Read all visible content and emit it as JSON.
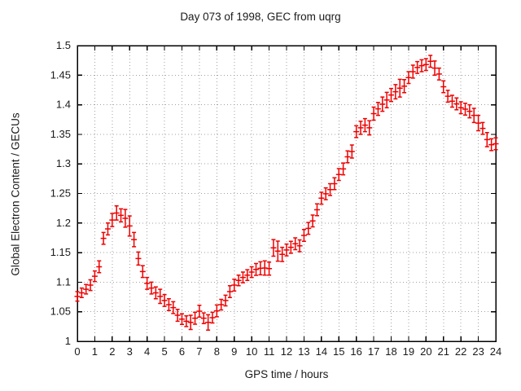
{
  "chart_data": {
    "type": "scatter",
    "style": "errorbars",
    "title": "Day 073 of 1998, GEC from uqrg",
    "xlabel": "GPS time / hours",
    "ylabel": "Global Electron Content / GECUs",
    "xlim": [
      0,
      24
    ],
    "ylim": [
      1.0,
      1.5
    ],
    "xticks": [
      0,
      1,
      2,
      3,
      4,
      5,
      6,
      7,
      8,
      9,
      10,
      11,
      12,
      13,
      14,
      15,
      16,
      17,
      18,
      19,
      20,
      21,
      22,
      23,
      24
    ],
    "yticks": [
      1.0,
      1.05,
      1.1,
      1.15,
      1.2,
      1.25,
      1.3,
      1.35,
      1.4,
      1.45,
      1.5
    ],
    "ytick_labels": [
      "1",
      "1.05",
      "1.1",
      "1.15",
      "1.2",
      "1.25",
      "1.3",
      "1.35",
      "1.4",
      "1.45",
      "1.5"
    ],
    "grid": true,
    "legend_position": "none",
    "series": [
      {
        "name": "GEC",
        "color": "#ee0000",
        "marker": "errorbar-with-dash",
        "x": [
          0,
          0.25,
          0.5,
          0.75,
          1,
          1.25,
          1.5,
          1.75,
          2,
          2.25,
          2.5,
          2.75,
          3,
          3.25,
          3.5,
          3.75,
          4,
          4.25,
          4.5,
          4.75,
          5,
          5.25,
          5.5,
          5.75,
          6,
          6.25,
          6.5,
          6.75,
          7,
          7.25,
          7.5,
          7.75,
          8,
          8.25,
          8.5,
          8.75,
          9,
          9.25,
          9.5,
          9.75,
          10,
          10.25,
          10.5,
          10.75,
          11,
          11.25,
          11.5,
          11.75,
          12,
          12.25,
          12.5,
          12.75,
          13,
          13.25,
          13.5,
          13.75,
          14,
          14.25,
          14.5,
          14.75,
          15,
          15.25,
          15.5,
          15.75,
          16,
          16.25,
          16.5,
          16.75,
          17,
          17.25,
          17.5,
          17.75,
          18,
          18.25,
          18.5,
          18.75,
          19,
          19.25,
          19.5,
          19.75,
          20,
          20.25,
          20.5,
          20.75,
          21,
          21.25,
          21.5,
          21.75,
          22,
          22.25,
          22.5,
          22.75,
          23,
          23.25,
          23.5,
          23.75,
          24
        ],
        "y": [
          1.076,
          1.082,
          1.088,
          1.095,
          1.11,
          1.126,
          1.174,
          1.19,
          1.205,
          1.217,
          1.213,
          1.208,
          1.195,
          1.172,
          1.14,
          1.118,
          1.098,
          1.09,
          1.082,
          1.076,
          1.069,
          1.062,
          1.057,
          1.044,
          1.0375,
          1.034,
          1.032,
          1.039,
          1.051,
          1.039,
          1.032,
          1.04,
          1.0515,
          1.062,
          1.069,
          1.084,
          1.095,
          1.103,
          1.108,
          1.112,
          1.117,
          1.1215,
          1.1235,
          1.124,
          1.123,
          1.158,
          1.1525,
          1.147,
          1.1545,
          1.159,
          1.165,
          1.1615,
          1.179,
          1.191,
          1.2035,
          1.2225,
          1.242,
          1.2495,
          1.2565,
          1.2665,
          1.282,
          1.2915,
          1.312,
          1.321,
          1.3545,
          1.361,
          1.3655,
          1.361,
          1.385,
          1.393,
          1.401,
          1.408,
          1.4165,
          1.422,
          1.428,
          1.4315,
          1.446,
          1.456,
          1.463,
          1.466,
          1.468,
          1.4735,
          1.462,
          1.452,
          1.4305,
          1.4145,
          1.406,
          1.4015,
          1.395,
          1.3925,
          1.389,
          1.382,
          1.369,
          1.36,
          1.341,
          1.3325,
          1.334
        ],
        "yerr": [
          0.008,
          0.008,
          0.008,
          0.009,
          0.009,
          0.01,
          0.01,
          0.01,
          0.011,
          0.012,
          0.011,
          0.015,
          0.017,
          0.012,
          0.011,
          0.01,
          0.01,
          0.01,
          0.01,
          0.012,
          0.01,
          0.01,
          0.01,
          0.01,
          0.009,
          0.009,
          0.012,
          0.01,
          0.01,
          0.009,
          0.013,
          0.009,
          0.01,
          0.009,
          0.009,
          0.01,
          0.01,
          0.009,
          0.009,
          0.009,
          0.009,
          0.01,
          0.011,
          0.012,
          0.011,
          0.014,
          0.017,
          0.012,
          0.01,
          0.01,
          0.01,
          0.01,
          0.01,
          0.01,
          0.01,
          0.01,
          0.01,
          0.01,
          0.01,
          0.01,
          0.01,
          0.01,
          0.01,
          0.011,
          0.01,
          0.011,
          0.011,
          0.012,
          0.011,
          0.011,
          0.012,
          0.013,
          0.011,
          0.012,
          0.015,
          0.011,
          0.01,
          0.011,
          0.01,
          0.01,
          0.01,
          0.01,
          0.012,
          0.01,
          0.01,
          0.01,
          0.01,
          0.01,
          0.01,
          0.01,
          0.011,
          0.012,
          0.013,
          0.01,
          0.012,
          0.01,
          0.01
        ]
      }
    ]
  },
  "style": {
    "background": "#ffffff",
    "axis_color": "#000000",
    "grid_color": "#a0a0a0",
    "text_color": "#1a1a1a",
    "series_color": "#ee0000"
  }
}
